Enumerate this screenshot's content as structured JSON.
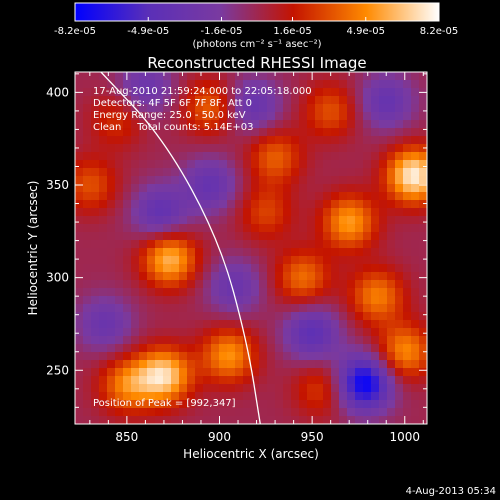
{
  "chart_data": {
    "type": "heatmap",
    "title": "Reconstructed RHESSI Image",
    "xlabel": "Heliocentric X (arcsec)",
    "ylabel": "Heliocentric Y (arcsec)",
    "xlim": [
      822,
      1012
    ],
    "ylim": [
      221,
      411
    ],
    "x_ticks": [
      850,
      900,
      950,
      1000
    ],
    "y_ticks": [
      250,
      300,
      350,
      400
    ],
    "colorbar": {
      "min": -8.2e-05,
      "max": 8.2e-05,
      "tick_values": [
        -8.2e-05,
        -4.9e-05,
        -1.6e-05,
        1.6e-05,
        4.9e-05,
        8.2e-05
      ],
      "tick_labels": [
        "-8.2e-05",
        "-4.9e-05",
        "-1.6e-05",
        "1.6e-05",
        "4.9e-05",
        "8.2e-05"
      ],
      "unit_label": "(photons cm⁻² s⁻¹ asec⁻²)",
      "colormap": [
        "#0000ff",
        "#5a2fb8",
        "#7a3aa0",
        "#c41400",
        "#ff8a00",
        "#ffffff"
      ]
    },
    "annotations": [
      "17-Aug-2010 21:59:24.000 to 22:05:18.000",
      "Detectors: 4F 5F 6F 7F 8F, Att 0",
      "Energy Range: 25.0 - 50.0 keV",
      "Clean     Total counts: 5.14E+03"
    ],
    "peak_label": "Position of Peak = [992,347]",
    "peak": {
      "x": 992,
      "y": 347
    },
    "limb_curve": [
      {
        "x": 836,
        "y": 411
      },
      {
        "x": 870,
        "y": 375
      },
      {
        "x": 900,
        "y": 320
      },
      {
        "x": 915,
        "y": 265
      },
      {
        "x": 922,
        "y": 221
      }
    ],
    "blobs": [
      {
        "x": 873,
        "y": 310,
        "v": 0.75
      },
      {
        "x": 850,
        "y": 242,
        "v": 0.55
      },
      {
        "x": 870,
        "y": 247,
        "v": 0.85
      },
      {
        "x": 905,
        "y": 258,
        "v": 0.62
      },
      {
        "x": 970,
        "y": 330,
        "v": 0.65
      },
      {
        "x": 1005,
        "y": 355,
        "v": 0.95
      },
      {
        "x": 985,
        "y": 290,
        "v": 0.55
      },
      {
        "x": 930,
        "y": 365,
        "v": 0.45
      },
      {
        "x": 945,
        "y": 300,
        "v": 0.5
      },
      {
        "x": 895,
        "y": 392,
        "v": 0.45
      },
      {
        "x": 1000,
        "y": 260,
        "v": 0.6
      },
      {
        "x": 960,
        "y": 390,
        "v": 0.4
      },
      {
        "x": 830,
        "y": 350,
        "v": 0.4
      },
      {
        "x": 925,
        "y": 335,
        "v": 0.35
      },
      {
        "x": 845,
        "y": 385,
        "v": 0.3
      },
      {
        "x": 955,
        "y": 240,
        "v": 0.35
      },
      {
        "x": 868,
        "y": 335,
        "v": -0.5
      },
      {
        "x": 895,
        "y": 350,
        "v": -0.45
      },
      {
        "x": 950,
        "y": 270,
        "v": -0.55
      },
      {
        "x": 978,
        "y": 243,
        "v": -1.0
      },
      {
        "x": 918,
        "y": 393,
        "v": -0.45
      },
      {
        "x": 838,
        "y": 275,
        "v": -0.4
      },
      {
        "x": 990,
        "y": 395,
        "v": -0.45
      },
      {
        "x": 908,
        "y": 295,
        "v": -0.4
      },
      {
        "x": 860,
        "y": 402,
        "v": -0.4
      }
    ]
  },
  "footer": {
    "timestamp": "4-Aug-2013 05:34"
  }
}
